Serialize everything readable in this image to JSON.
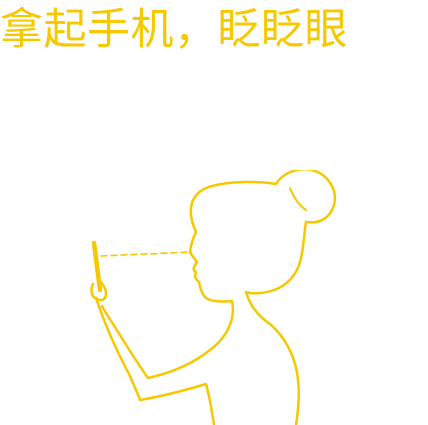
{
  "instruction": {
    "title": "拿起手机，眨眨眼"
  },
  "illustration": {
    "icon": "person-holding-phone-blink-icon",
    "stroke_color": "#F5C800"
  },
  "theme": {
    "accent": "#F5C800",
    "background": "#FFFFFF"
  }
}
